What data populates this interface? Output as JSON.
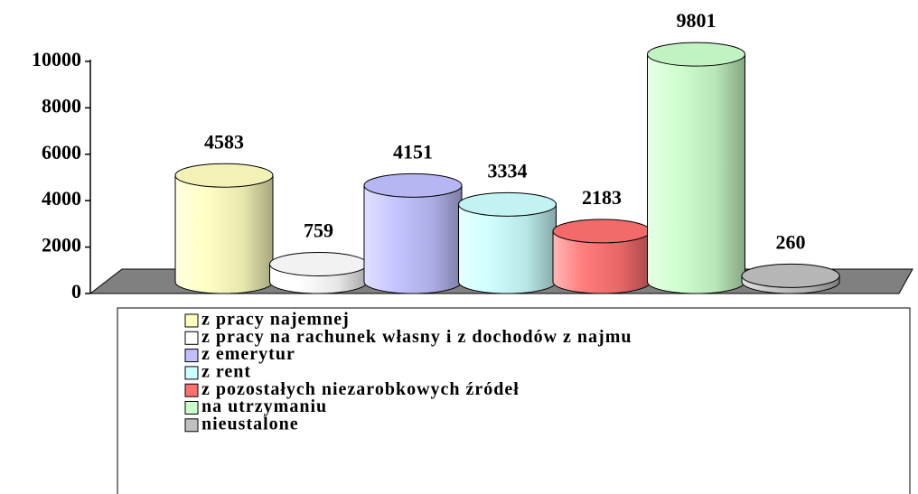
{
  "chart_data": {
    "type": "bar",
    "categories": [
      "z pracy najemnej",
      "z pracy na rachunek własny i z dochodów z najmu",
      "z emerytur",
      "z rent",
      "z pozostałych niezarobkowych źródeł",
      "na utrzymaniu",
      "nieustalone"
    ],
    "values": [
      4583,
      759,
      4151,
      3334,
      2183,
      9801,
      260
    ],
    "colors": [
      "#ffffc0",
      "#ffffff",
      "#c0c0ff",
      "#ccffff",
      "#ff7070",
      "#ccffcc",
      "#c0c0c0"
    ],
    "ylim": [
      0,
      10000
    ],
    "yticks": [
      0,
      2000,
      4000,
      6000,
      8000,
      10000
    ]
  }
}
